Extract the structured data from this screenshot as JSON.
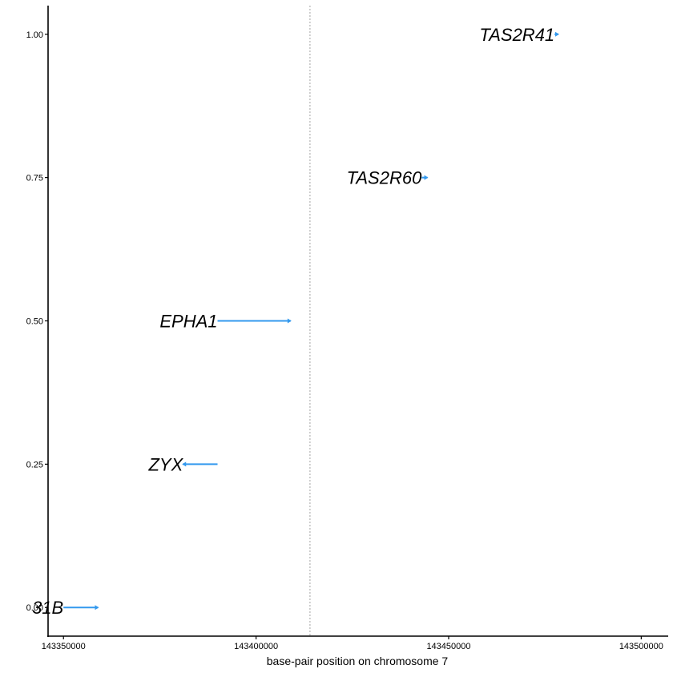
{
  "chart_data": {
    "type": "gene-track",
    "xlabel": "base-pair position on chromosome 7",
    "ylabel": "",
    "xlim": [
      143346000,
      143507000
    ],
    "ylim": [
      -0.05,
      1.05
    ],
    "x_ticks": [
      {
        "value": 143350000,
        "label": "143350000"
      },
      {
        "value": 143400000,
        "label": "143400000"
      },
      {
        "value": 143450000,
        "label": "143450000"
      },
      {
        "value": 143500000,
        "label": "143500000"
      }
    ],
    "y_ticks": [
      {
        "value": 0.0,
        "label": "0.00"
      },
      {
        "value": 0.25,
        "label": "0.25"
      },
      {
        "value": 0.5,
        "label": "0.50"
      },
      {
        "value": 0.75,
        "label": "0.75"
      },
      {
        "value": 1.0,
        "label": "1.00"
      }
    ],
    "reference_line_x": 143414000,
    "genes": [
      {
        "name": "31B",
        "y": 0.0,
        "start": 143350000,
        "end": 143359000,
        "strand": "+"
      },
      {
        "name": "ZYX",
        "y": 0.25,
        "start": 143381000,
        "end": 143390000,
        "strand": "-"
      },
      {
        "name": "EPHA1",
        "y": 0.5,
        "start": 143390000,
        "end": 143409000,
        "strand": "+"
      },
      {
        "name": "TAS2R60",
        "y": 0.75,
        "start": 143443000,
        "end": 143444500,
        "strand": "+"
      },
      {
        "name": "TAS2R41",
        "y": 1.0,
        "start": 143477500,
        "end": 143478500,
        "strand": "+"
      }
    ],
    "gene_color": "#3399ee",
    "reference_line_color": "#b3b3b3",
    "grid": false,
    "legend": "none"
  }
}
